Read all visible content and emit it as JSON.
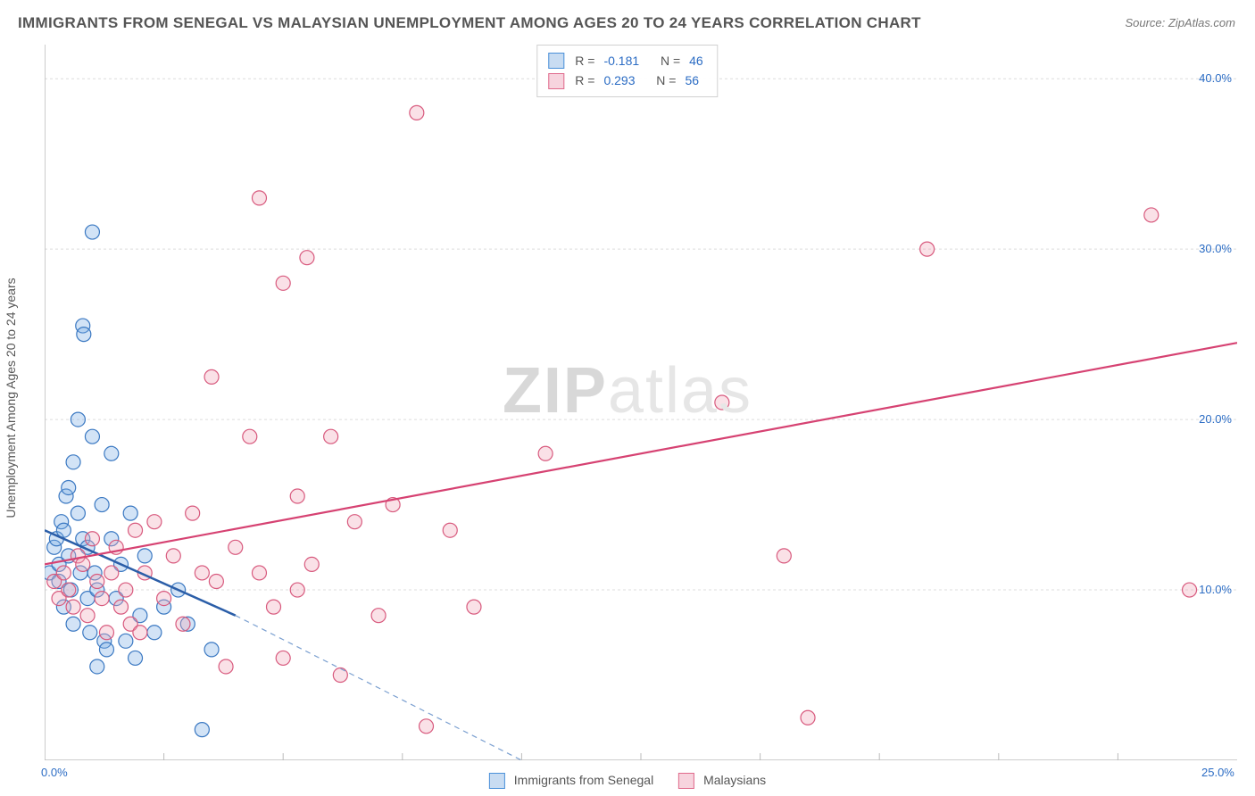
{
  "title": "IMMIGRANTS FROM SENEGAL VS MALAYSIAN UNEMPLOYMENT AMONG AGES 20 TO 24 YEARS CORRELATION CHART",
  "source_prefix": "Source: ",
  "source": "ZipAtlas.com",
  "y_axis_label": "Unemployment Among Ages 20 to 24 years",
  "watermark_bold": "ZIP",
  "watermark_light": "atlas",
  "watermark_color_bold": "#d8d8d8",
  "watermark_color_light": "#e6e6e6",
  "background_color": "#ffffff",
  "grid_color": "#dcdcdc",
  "axis_color": "#bbbbbb",
  "tick_label_color": "#2b6cc4",
  "legend": {
    "series": [
      {
        "label": "Immigrants from Senegal",
        "swatch_fill": "#c8dcf2",
        "swatch_stroke": "#4a90d9",
        "R_label": "R =",
        "R": "-0.181",
        "N_label": "N =",
        "N": "46"
      },
      {
        "label": "Malaysians",
        "swatch_fill": "#f7d4de",
        "swatch_stroke": "#e06a8c",
        "R_label": "R =",
        "R": "0.293",
        "N_label": "N =",
        "N": "56"
      }
    ]
  },
  "chart": {
    "type": "scatter",
    "xlim": [
      0,
      25
    ],
    "ylim": [
      0,
      42
    ],
    "x_ticks": [
      0,
      25
    ],
    "x_tick_labels": [
      "0.0%",
      "25.0%"
    ],
    "x_minor_ticks": [
      2.5,
      5.0,
      7.5,
      10.0,
      12.5,
      15.0,
      17.5,
      20.0,
      22.5
    ],
    "y_ticks": [
      10,
      20,
      30,
      40
    ],
    "y_tick_labels": [
      "10.0%",
      "20.0%",
      "30.0%",
      "40.0%"
    ],
    "marker_radius": 8,
    "marker_stroke_width": 1.2,
    "marker_fill_opacity": 0.35,
    "series": [
      {
        "name": "senegal",
        "fill": "#7fb0e6",
        "stroke": "#3a78c2",
        "points": [
          [
            0.1,
            11.0
          ],
          [
            0.2,
            12.5
          ],
          [
            0.25,
            13.0
          ],
          [
            0.3,
            11.5
          ],
          [
            0.3,
            10.5
          ],
          [
            0.35,
            14.0
          ],
          [
            0.4,
            13.5
          ],
          [
            0.4,
            9.0
          ],
          [
            0.45,
            15.5
          ],
          [
            0.5,
            12.0
          ],
          [
            0.5,
            16.0
          ],
          [
            0.55,
            10.0
          ],
          [
            0.6,
            17.5
          ],
          [
            0.6,
            8.0
          ],
          [
            0.7,
            14.5
          ],
          [
            0.7,
            20.0
          ],
          [
            0.75,
            11.0
          ],
          [
            0.8,
            13.0
          ],
          [
            0.8,
            25.5
          ],
          [
            0.82,
            25.0
          ],
          [
            0.9,
            9.5
          ],
          [
            0.9,
            12.5
          ],
          [
            0.95,
            7.5
          ],
          [
            1.0,
            31.0
          ],
          [
            1.0,
            19.0
          ],
          [
            1.05,
            11.0
          ],
          [
            1.1,
            5.5
          ],
          [
            1.1,
            10.0
          ],
          [
            1.2,
            15.0
          ],
          [
            1.25,
            7.0
          ],
          [
            1.3,
            6.5
          ],
          [
            1.4,
            18.0
          ],
          [
            1.4,
            13.0
          ],
          [
            1.5,
            9.5
          ],
          [
            1.6,
            11.5
          ],
          [
            1.7,
            7.0
          ],
          [
            1.8,
            14.5
          ],
          [
            1.9,
            6.0
          ],
          [
            2.0,
            8.5
          ],
          [
            2.1,
            12.0
          ],
          [
            2.3,
            7.5
          ],
          [
            2.5,
            9.0
          ],
          [
            2.8,
            10.0
          ],
          [
            3.0,
            8.0
          ],
          [
            3.3,
            1.8
          ],
          [
            3.5,
            6.5
          ]
        ],
        "trend": {
          "solid": {
            "x1": 0.0,
            "y1": 13.5,
            "x2": 4.0,
            "y2": 8.5,
            "color": "#2b5ea8",
            "width": 2.5
          },
          "dashed": {
            "x1": 4.0,
            "y1": 8.5,
            "x2": 10.0,
            "y2": 0.0,
            "color": "#7a9fd0",
            "width": 1.2,
            "dash": "6 5"
          }
        }
      },
      {
        "name": "malaysians",
        "fill": "#f0aabb",
        "stroke": "#d85a7e",
        "points": [
          [
            0.2,
            10.5
          ],
          [
            0.3,
            9.5
          ],
          [
            0.4,
            11.0
          ],
          [
            0.5,
            10.0
          ],
          [
            0.6,
            9.0
          ],
          [
            0.7,
            12.0
          ],
          [
            0.8,
            11.5
          ],
          [
            0.9,
            8.5
          ],
          [
            1.0,
            13.0
          ],
          [
            1.1,
            10.5
          ],
          [
            1.2,
            9.5
          ],
          [
            1.3,
            7.5
          ],
          [
            1.4,
            11.0
          ],
          [
            1.5,
            12.5
          ],
          [
            1.6,
            9.0
          ],
          [
            1.7,
            10.0
          ],
          [
            1.8,
            8.0
          ],
          [
            1.9,
            13.5
          ],
          [
            2.0,
            7.5
          ],
          [
            2.1,
            11.0
          ],
          [
            2.3,
            14.0
          ],
          [
            2.5,
            9.5
          ],
          [
            2.7,
            12.0
          ],
          [
            2.9,
            8.0
          ],
          [
            3.1,
            14.5
          ],
          [
            3.3,
            11.0
          ],
          [
            3.5,
            22.5
          ],
          [
            3.6,
            10.5
          ],
          [
            3.8,
            5.5
          ],
          [
            4.0,
            12.5
          ],
          [
            4.3,
            19.0
          ],
          [
            4.5,
            33.0
          ],
          [
            4.5,
            11.0
          ],
          [
            4.8,
            9.0
          ],
          [
            5.0,
            28.0
          ],
          [
            5.0,
            6.0
          ],
          [
            5.3,
            15.5
          ],
          [
            5.3,
            10.0
          ],
          [
            5.5,
            29.5
          ],
          [
            5.6,
            11.5
          ],
          [
            6.0,
            19.0
          ],
          [
            6.2,
            5.0
          ],
          [
            6.5,
            14.0
          ],
          [
            7.0,
            8.5
          ],
          [
            7.3,
            15.0
          ],
          [
            7.8,
            38.0
          ],
          [
            8.0,
            2.0
          ],
          [
            8.5,
            13.5
          ],
          [
            9.0,
            9.0
          ],
          [
            10.5,
            18.0
          ],
          [
            14.2,
            21.0
          ],
          [
            15.5,
            12.0
          ],
          [
            16.0,
            2.5
          ],
          [
            18.5,
            30.0
          ],
          [
            23.2,
            32.0
          ],
          [
            24.0,
            10.0
          ]
        ],
        "trend": {
          "solid": {
            "x1": 0.0,
            "y1": 11.5,
            "x2": 25.0,
            "y2": 24.5,
            "color": "#d64272",
            "width": 2.2
          }
        }
      }
    ]
  }
}
